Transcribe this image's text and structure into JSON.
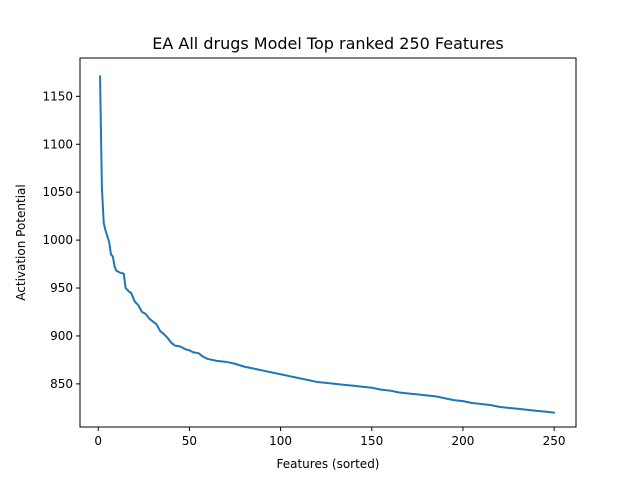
{
  "chart_data": {
    "type": "line",
    "title": "EA All drugs Model Top ranked 250 Features",
    "xlabel": "Features (sorted)",
    "ylabel": "Activation Potential",
    "xlim": [
      -10,
      262
    ],
    "ylim": [
      805,
      1190
    ],
    "xticks": [
      0,
      50,
      100,
      150,
      200,
      250
    ],
    "yticks": [
      850,
      900,
      950,
      1000,
      1050,
      1100,
      1150
    ],
    "xtick_labels": [
      "0",
      "50",
      "100",
      "150",
      "200",
      "250"
    ],
    "ytick_labels": [
      "850",
      "900",
      "950",
      "1000",
      "1050",
      "1100",
      "1150"
    ],
    "grid": false,
    "series": [
      {
        "color": "#1f77b4",
        "x": [
          1,
          2,
          3,
          4,
          5,
          6,
          7,
          8,
          9,
          10,
          12,
          14,
          15,
          17,
          18,
          20,
          22,
          24,
          26,
          28,
          30,
          32,
          34,
          36,
          38,
          40,
          42,
          45,
          48,
          50,
          52,
          55,
          57,
          60,
          65,
          70,
          75,
          80,
          85,
          90,
          95,
          100,
          105,
          110,
          115,
          120,
          125,
          130,
          135,
          140,
          145,
          150,
          155,
          160,
          165,
          170,
          175,
          180,
          185,
          190,
          195,
          200,
          205,
          210,
          215,
          220,
          225,
          230,
          235,
          240,
          245,
          250
        ],
        "y": [
          1171,
          1055,
          1018,
          1010,
          1004,
          998,
          985,
          983,
          972,
          968,
          966,
          965,
          950,
          946,
          945,
          936,
          932,
          925,
          923,
          918,
          915,
          912,
          905,
          902,
          898,
          893,
          890,
          889,
          886,
          885,
          883,
          882,
          879,
          876,
          874,
          873,
          871,
          868,
          866,
          864,
          862,
          860,
          858,
          856,
          854,
          852,
          851,
          850,
          849,
          848,
          847,
          846,
          844,
          843,
          841,
          840,
          839,
          838,
          837,
          835,
          833,
          832,
          830,
          829,
          828,
          826,
          825,
          824,
          823,
          822,
          821,
          820
        ]
      }
    ]
  }
}
